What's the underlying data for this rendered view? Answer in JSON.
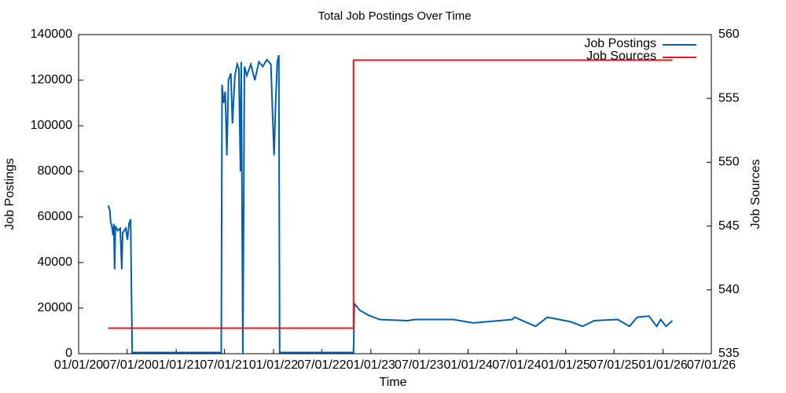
{
  "chart_data": {
    "type": "line",
    "title": "Total Job Postings Over Time",
    "xlabel": "Time",
    "ylabel": "Job Postings",
    "y2label": "Job Sources",
    "xlim": [
      "2020-01-01",
      "2026-07-01"
    ],
    "xticks": [
      {
        "value": "2020-01-01",
        "label": "01/01/20"
      },
      {
        "value": "2020-07-01",
        "label": "07/01/20"
      },
      {
        "value": "2021-01-01",
        "label": "01/01/21"
      },
      {
        "value": "2021-07-01",
        "label": "07/01/21"
      },
      {
        "value": "2022-01-01",
        "label": "01/01/22"
      },
      {
        "value": "2022-07-01",
        "label": "07/01/22"
      },
      {
        "value": "2023-01-01",
        "label": "01/01/23"
      },
      {
        "value": "2023-07-01",
        "label": "07/01/23"
      },
      {
        "value": "2024-01-01",
        "label": "01/01/24"
      },
      {
        "value": "2024-07-01",
        "label": "07/01/24"
      },
      {
        "value": "2025-01-01",
        "label": "01/01/25"
      },
      {
        "value": "2025-07-01",
        "label": "07/01/25"
      },
      {
        "value": "2026-01-01",
        "label": "01/01/26"
      },
      {
        "value": "2026-07-01",
        "label": "07/01/26"
      }
    ],
    "ylim": [
      0,
      140000
    ],
    "yticks": [
      0,
      20000,
      40000,
      60000,
      80000,
      100000,
      120000,
      140000
    ],
    "y2lim": [
      535,
      560
    ],
    "y2ticks": [
      535,
      540,
      545,
      550,
      555,
      560
    ],
    "legend": "top right",
    "series": [
      {
        "name": "Job Postings",
        "color": "#0060ad",
        "x": [
          "2020-04-21",
          "2020-04-27",
          "2020-04-30",
          "2020-05-06",
          "2020-05-09",
          "2020-05-12",
          "2020-05-15",
          "2020-05-18",
          "2020-05-27",
          "2020-06-05",
          "2020-06-11",
          "2020-06-14",
          "2020-06-26",
          "2020-07-02",
          "2020-07-08",
          "2020-07-14",
          "2020-07-20",
          "2021-06-19",
          "2021-06-22",
          "2021-06-28",
          "2021-07-04",
          "2021-07-10",
          "2021-07-16",
          "2021-07-25",
          "2021-07-31",
          "2021-08-09",
          "2021-08-18",
          "2021-08-24",
          "2021-08-30",
          "2021-09-02",
          "2021-09-08",
          "2021-09-14",
          "2021-09-23",
          "2021-10-08",
          "2021-10-23",
          "2021-11-07",
          "2021-11-22",
          "2021-12-07",
          "2021-12-22",
          "2022-01-03",
          "2022-01-09",
          "2022-01-15",
          "2022-01-21",
          "2022-01-24",
          "2022-10-28",
          "2022-10-31",
          "2022-11-21",
          "2022-12-21",
          "2023-02-03",
          "2023-05-18",
          "2023-06-17",
          "2023-11-07",
          "2024-01-20",
          "2024-06-14",
          "2024-06-23",
          "2024-09-10",
          "2024-10-24",
          "2025-01-20",
          "2025-03-05",
          "2025-04-18",
          "2025-07-15",
          "2025-08-28",
          "2025-09-26",
          "2025-11-09",
          "2025-12-08",
          "2025-12-23",
          "2026-01-12",
          "2026-02-05"
        ],
        "values": [
          65000,
          63000,
          58000,
          55000,
          52000,
          57000,
          37000,
          56000,
          54000,
          55000,
          37000,
          53000,
          55000,
          50000,
          57000,
          59000,
          500,
          500,
          118000,
          110000,
          115000,
          87000,
          120000,
          123000,
          101000,
          122000,
          127000,
          125000,
          80000,
          128000,
          0,
          126000,
          122000,
          127000,
          120000,
          128000,
          126000,
          129000,
          127000,
          87000,
          110000,
          128000,
          131000,
          500,
          500,
          22000,
          19000,
          17000,
          15000,
          14500,
          15000,
          15000,
          13500,
          15000,
          16000,
          12000,
          16000,
          14000,
          12000,
          14500,
          15000,
          12000,
          16000,
          16500,
          12000,
          15000,
          12000,
          14500
        ]
      },
      {
        "name": "Job Sources",
        "color": "#e41a1c",
        "axis": "y2",
        "x": [
          "2020-04-21",
          "2022-10-28",
          "2022-10-28",
          "2026-02-05"
        ],
        "values": [
          537,
          537,
          558,
          558
        ]
      }
    ]
  }
}
